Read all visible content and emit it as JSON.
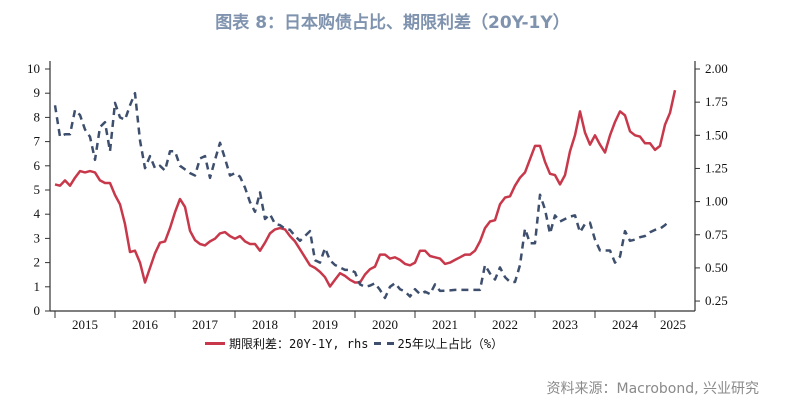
{
  "title": "图表 8：日本购债占比、期限利差（20Y-1Y）",
  "source": "资料来源：Macrobond, 兴业研究",
  "colors": {
    "spread": "#c8384b",
    "share": "#3e4f6e",
    "title": "#7f93ae"
  },
  "chart_data": {
    "type": "line",
    "title": "图表 8：日本购债占比、期限利差（20Y-1Y）",
    "x_start": "2015-01",
    "x_frequency": "monthly",
    "x_tick_labels": [
      "2015",
      "2016",
      "2017",
      "2018",
      "2019",
      "2020",
      "2021",
      "2022",
      "2023",
      "2024",
      "2025"
    ],
    "left_axis": {
      "ylim": [
        0,
        10
      ],
      "ticks": [
        "0",
        "1",
        "2",
        "3",
        "4",
        "5",
        "6",
        "7",
        "8",
        "9",
        "10"
      ]
    },
    "right_axis": {
      "ylim": [
        0.175,
        2.0
      ],
      "ticks": [
        "0.25",
        "0.50",
        "0.75",
        "1.00",
        "1.25",
        "1.50",
        "1.75",
        "2.00"
      ]
    },
    "grid": false,
    "legend_position": "bottom",
    "series": [
      {
        "name": "期限利差：20Y-1Y, rhs",
        "axis": "right",
        "style": "solid",
        "values": [
          1.13,
          1.12,
          1.16,
          1.12,
          1.18,
          1.23,
          1.22,
          1.23,
          1.22,
          1.16,
          1.14,
          1.14,
          1.05,
          0.98,
          0.83,
          0.62,
          0.63,
          0.54,
          0.39,
          0.5,
          0.61,
          0.69,
          0.7,
          0.8,
          0.92,
          1.02,
          0.96,
          0.78,
          0.71,
          0.68,
          0.67,
          0.7,
          0.72,
          0.76,
          0.77,
          0.74,
          0.72,
          0.74,
          0.7,
          0.68,
          0.68,
          0.63,
          0.69,
          0.76,
          0.79,
          0.8,
          0.79,
          0.74,
          0.7,
          0.64,
          0.58,
          0.52,
          0.5,
          0.47,
          0.43,
          0.36,
          0.41,
          0.46,
          0.44,
          0.41,
          0.39,
          0.39,
          0.45,
          0.49,
          0.51,
          0.6,
          0.6,
          0.57,
          0.58,
          0.56,
          0.53,
          0.52,
          0.54,
          0.63,
          0.63,
          0.59,
          0.58,
          0.57,
          0.53,
          0.54,
          0.56,
          0.58,
          0.6,
          0.6,
          0.63,
          0.7,
          0.8,
          0.85,
          0.86,
          0.98,
          1.03,
          1.04,
          1.12,
          1.18,
          1.22,
          1.32,
          1.42,
          1.42,
          1.3,
          1.21,
          1.2,
          1.13,
          1.2,
          1.38,
          1.5,
          1.68,
          1.52,
          1.43,
          1.5,
          1.43,
          1.37,
          1.5,
          1.6,
          1.68,
          1.65,
          1.53,
          1.5,
          1.49,
          1.44,
          1.44,
          1.39,
          1.42,
          1.58,
          1.67,
          1.84
        ]
      },
      {
        "name": "25年以上占比（%）",
        "axis": "left",
        "style": "dashed",
        "values": [
          8.5,
          7.2,
          7.3,
          7.3,
          8.3,
          8.1,
          7.5,
          7.2,
          6.25,
          7.6,
          7.8,
          6.6,
          8.6,
          8.0,
          7.9,
          8.5,
          9.0,
          7.05,
          5.9,
          6.4,
          5.9,
          6.0,
          5.8,
          6.6,
          6.6,
          6.0,
          5.85,
          5.7,
          5.6,
          6.3,
          6.4,
          5.5,
          6.25,
          6.95,
          6.3,
          5.6,
          5.7,
          5.55,
          5.1,
          4.5,
          4.1,
          4.9,
          3.8,
          4.0,
          3.6,
          3.55,
          3.4,
          3.35,
          3.1,
          2.9,
          3.1,
          3.3,
          2.1,
          2.0,
          2.6,
          2.1,
          1.9,
          1.8,
          1.7,
          1.7,
          1.6,
          1.1,
          1.0,
          1.05,
          1.15,
          0.87,
          0.54,
          1.0,
          1.15,
          0.9,
          0.8,
          0.6,
          0.9,
          0.7,
          0.8,
          0.7,
          1.1,
          0.83,
          0.84,
          0.85,
          0.87,
          0.87,
          0.87,
          0.87,
          0.87,
          0.87,
          1.9,
          1.55,
          1.3,
          1.8,
          1.4,
          1.2,
          1.2,
          1.9,
          3.4,
          2.8,
          2.8,
          4.8,
          4.2,
          3.2,
          3.95,
          3.7,
          3.8,
          3.9,
          3.95,
          3.25,
          3.6,
          3.65,
          2.95,
          2.5,
          2.5,
          2.5,
          2.0,
          2.25,
          3.3,
          2.9,
          2.95,
          3.05,
          3.1,
          3.25,
          3.35,
          3.4,
          3.55,
          3.75
        ]
      }
    ]
  }
}
